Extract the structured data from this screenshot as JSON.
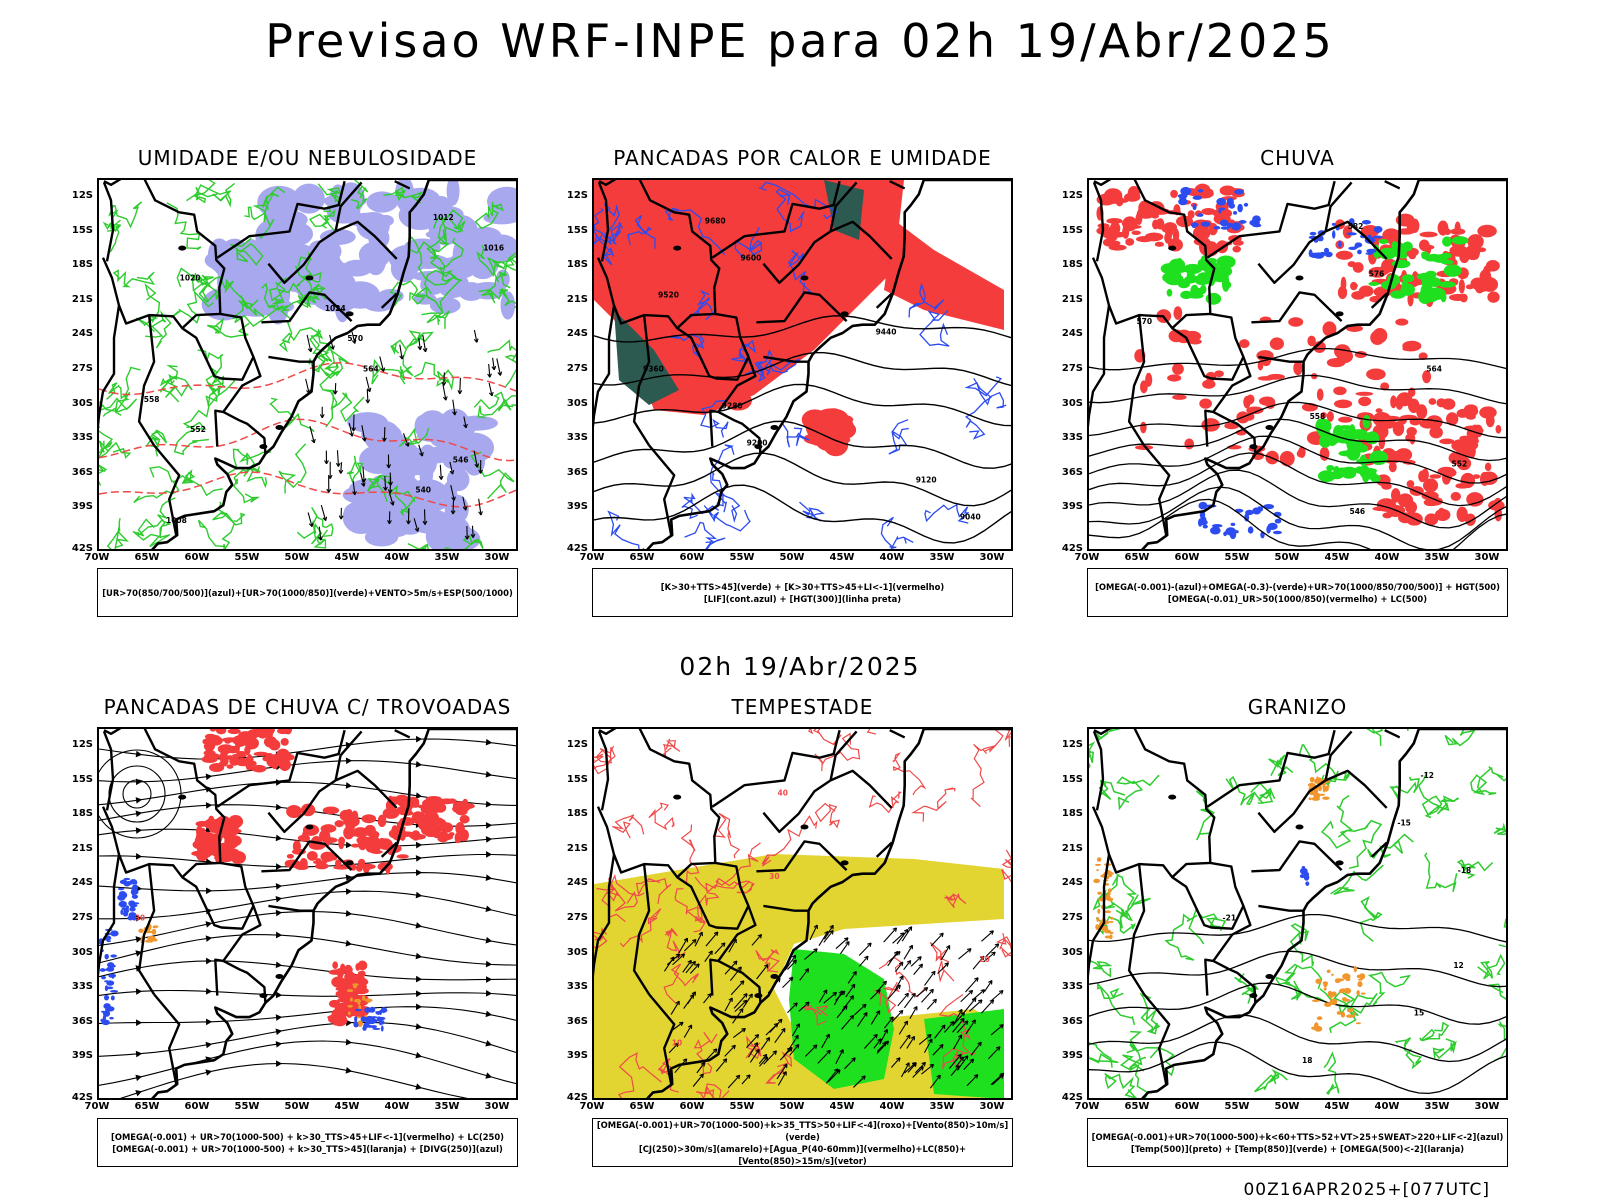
{
  "title": "Previsao WRF-INPE  para 02h 19/Abr/2025",
  "subtitle_mid": "02h 19/Abr/2025",
  "run_label": "00Z16APR2025+[077UTC]",
  "lat_labels": [
    "12S",
    "15S",
    "18S",
    "21S",
    "24S",
    "27S",
    "30S",
    "33S",
    "36S",
    "39S",
    "42S"
  ],
  "lon_labels": [
    "70W",
    "65W",
    "60W",
    "55W",
    "50W",
    "45W",
    "40W",
    "35W",
    "30W"
  ],
  "colors": {
    "purple_fill": "#a8a8ef",
    "red_fill": "#f43c3c",
    "dark_fill": "#2c5a50",
    "yellow_fill": "#e2d532",
    "green_fill": "#1ee01e",
    "green_line": "#2ecc2e",
    "blue_line": "#2c4cf0",
    "red_line": "#ef4a4a",
    "orange": "#f0962c"
  },
  "panels": [
    {
      "id": "umidade",
      "title": "UMIDADE E/OU NEBULOSIDADE",
      "legend": [
        "[UR>70(850/700/500)](azul)+[UR>70(1000/850)](verde)+VENTO>5m/s+ESP(500/1000)"
      ],
      "labels": [
        "1012",
        "1016",
        "1020",
        "1024",
        "570",
        "564",
        "558",
        "552",
        "546",
        "540",
        "1008"
      ]
    },
    {
      "id": "pancadas-calor",
      "title": "PANCADAS POR CALOR E UMIDADE",
      "legend": [
        "[K>30+TTS>45](verde) + [K>30+TTS>45+LI<-1](vermelho)",
        "[LIF](cont.azul) + [HGT(300)](linha preta)"
      ],
      "labels": [
        "9680",
        "9600",
        "9520",
        "9440",
        "9360",
        "9280",
        "9200",
        "9120",
        "9040"
      ]
    },
    {
      "id": "chuva",
      "title": "CHUVA",
      "legend": [
        "[OMEGA(-0.001)-(azul)+OMEGA(-0.3)-(verde)+UR>70(1000/850/700/500)] + HGT(500)",
        "[OMEGA(-0.01)_UR>50(1000/850)(vermelho) + LC(500)"
      ],
      "labels": [
        "582",
        "576",
        "570",
        "564",
        "558",
        "552",
        "546"
      ]
    },
    {
      "id": "trovoadas",
      "title": "PANCADAS DE CHUVA C/ TROVOADAS",
      "legend": [
        "[OMEGA(-0.001) + UR>70(1000-500) + k>30_TTS>45+LIF<-1](vermelho) + LC(250)",
        "[OMEGA(-0.001) + UR>70(1000-500) + k>30_TTS>45](laranja) + [DIVG(250)](azul)"
      ],
      "labels": [
        "30"
      ]
    },
    {
      "id": "tempestade",
      "title": "TEMPESTADE",
      "legend": [
        "[OMEGA(-0.001)+UR>70(1000-500)+k>35_TTS>50+LIF<-4](roxo)+[Vento(850)>10m/s](verde)",
        "[CJ(250)>30m/s](amarelo)+[Agua_P(40-60mm)](vermelho)+LC(850)+[Vento(850)>15m/s](vetor)"
      ],
      "labels": [
        "40",
        "30",
        "20",
        "10"
      ]
    },
    {
      "id": "granizo",
      "title": "GRANIZO",
      "legend": [
        "[OMEGA(-0.001)+UR>70(1000-500)+k<60+TTS>52+VT>25+SWEAT>220+LIF<-2](azul)",
        "[Temp(500)](preto) + [Temp(850)](verde) + [OMEGA(500)<-2](laranja)"
      ],
      "labels": [
        "-12",
        "-15",
        "-18",
        "-21",
        "12",
        "15",
        "18"
      ]
    }
  ]
}
